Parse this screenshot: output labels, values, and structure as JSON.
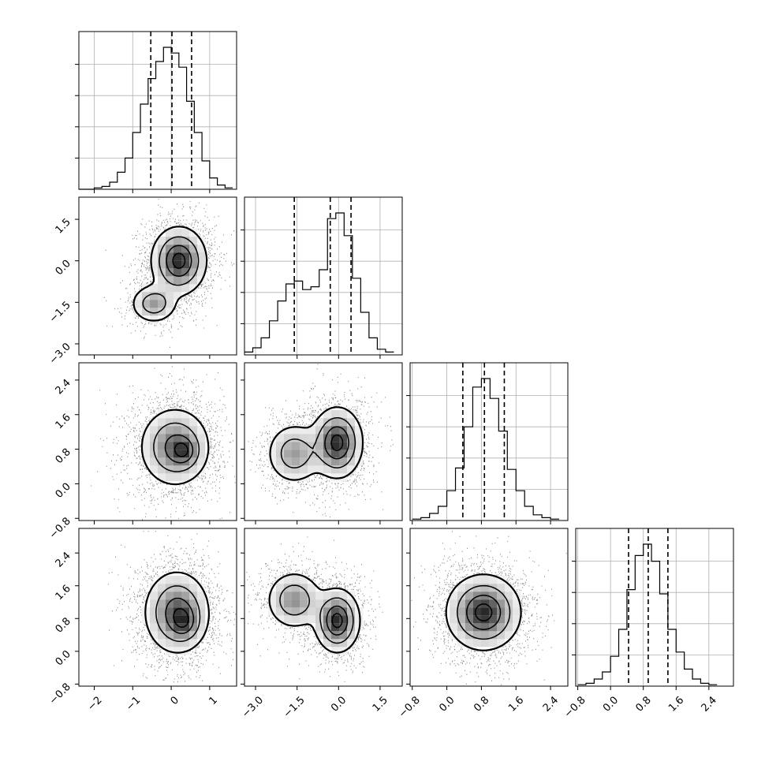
{
  "chart_data": {
    "type": "corner",
    "title": "",
    "params": [
      {
        "key": "p0",
        "range": [
          -2.4,
          1.7
        ],
        "ticks": [
          -2,
          -1,
          0,
          1
        ],
        "tick_labels": [
          "−2",
          "−1",
          "0",
          "1"
        ]
      },
      {
        "key": "p1",
        "range": [
          -3.4,
          2.3
        ],
        "ticks": [
          -3.0,
          -1.5,
          0.0,
          1.5
        ],
        "tick_labels": [
          "−3.0",
          "−1.5",
          "0.0",
          "1.5"
        ]
      },
      {
        "key": "p2",
        "range": [
          -0.85,
          2.8
        ],
        "ticks": [
          -0.8,
          0.0,
          0.8,
          1.6,
          2.4
        ],
        "tick_labels": [
          "−0.8",
          "0.0",
          "0.8",
          "1.6",
          "2.4"
        ]
      },
      {
        "key": "p3",
        "range": [
          -0.85,
          3.0
        ],
        "ticks": [
          -0.8,
          0.0,
          0.8,
          1.6,
          2.4
        ],
        "tick_labels": [
          "−0.8",
          "0.0",
          "0.8",
          "1.6",
          "2.4"
        ]
      }
    ],
    "histograms": [
      {
        "param": "p0",
        "quantiles": [
          -0.53,
          0.02,
          0.53
        ],
        "bins": [
          -2.4,
          -2.2,
          -2.0,
          -1.8,
          -1.6,
          -1.4,
          -1.2,
          -1.0,
          -0.8,
          -0.6,
          -0.4,
          -0.2,
          0.0,
          0.2,
          0.4,
          0.6,
          0.8,
          1.0,
          1.2,
          1.4,
          1.6
        ],
        "counts": [
          0,
          0,
          0.01,
          0.02,
          0.05,
          0.12,
          0.22,
          0.4,
          0.6,
          0.78,
          0.9,
          1.0,
          0.96,
          0.86,
          0.62,
          0.4,
          0.2,
          0.08,
          0.03,
          0.01
        ]
      },
      {
        "param": "p1",
        "quantiles": [
          -1.6,
          -0.3,
          0.45
        ],
        "bins": [
          -3.4,
          -3.1,
          -2.8,
          -2.5,
          -2.2,
          -1.9,
          -1.6,
          -1.3,
          -1.0,
          -0.7,
          -0.4,
          -0.1,
          0.2,
          0.5,
          0.8,
          1.1,
          1.4,
          1.7,
          2.0
        ],
        "counts": [
          0.02,
          0.05,
          0.12,
          0.24,
          0.38,
          0.5,
          0.52,
          0.46,
          0.48,
          0.6,
          0.96,
          1.0,
          0.84,
          0.54,
          0.3,
          0.12,
          0.04,
          0.02
        ]
      },
      {
        "param": "p2",
        "quantiles": [
          0.37,
          0.87,
          1.33
        ],
        "bins": [
          -0.8,
          -0.6,
          -0.4,
          -0.2,
          0.0,
          0.2,
          0.4,
          0.6,
          0.8,
          1.0,
          1.2,
          1.4,
          1.6,
          1.8,
          2.0,
          2.2,
          2.4,
          2.6
        ],
        "counts": [
          0.01,
          0.02,
          0.05,
          0.1,
          0.21,
          0.37,
          0.66,
          0.94,
          1.0,
          0.86,
          0.63,
          0.36,
          0.21,
          0.1,
          0.04,
          0.02,
          0.01
        ]
      },
      {
        "param": "p3",
        "quantiles": [
          0.44,
          0.92,
          1.4
        ],
        "bins": [
          -0.8,
          -0.6,
          -0.4,
          -0.2,
          0.0,
          0.2,
          0.4,
          0.6,
          0.8,
          1.0,
          1.2,
          1.4,
          1.6,
          1.8,
          2.0,
          2.2,
          2.4,
          2.6
        ],
        "counts": [
          0.01,
          0.02,
          0.05,
          0.1,
          0.21,
          0.4,
          0.68,
          0.92,
          1.0,
          0.88,
          0.65,
          0.4,
          0.24,
          0.12,
          0.05,
          0.02,
          0.01
        ]
      }
    ],
    "pair_density": [
      {
        "x": "p0",
        "y": "p1",
        "modes": [
          {
            "mx": 0.2,
            "my": 0.0,
            "sx": 0.35,
            "sy": 0.6,
            "w": 1.0
          },
          {
            "mx": -0.45,
            "my": -1.55,
            "sx": 0.3,
            "sy": 0.35,
            "w": 0.55
          }
        ]
      },
      {
        "x": "p0",
        "y": "p2",
        "modes": [
          {
            "mx": 0.1,
            "my": 0.85,
            "sx": 0.45,
            "sy": 0.45,
            "w": 1.0
          },
          {
            "mx": 0.35,
            "my": 0.75,
            "sx": 0.2,
            "sy": 0.2,
            "w": 0.5
          }
        ]
      },
      {
        "x": "p1",
        "y": "p2",
        "modes": [
          {
            "mx": -0.05,
            "my": 0.95,
            "sx": 0.45,
            "sy": 0.4,
            "w": 1.0
          },
          {
            "mx": -1.6,
            "my": 0.7,
            "sx": 0.5,
            "sy": 0.35,
            "w": 0.55
          }
        ]
      },
      {
        "x": "p0",
        "y": "p3",
        "modes": [
          {
            "mx": 0.15,
            "my": 0.95,
            "sx": 0.42,
            "sy": 0.5,
            "w": 1.0
          },
          {
            "mx": 0.35,
            "my": 0.7,
            "sx": 0.22,
            "sy": 0.25,
            "w": 0.45
          }
        ]
      },
      {
        "x": "p1",
        "y": "p3",
        "modes": [
          {
            "mx": -0.05,
            "my": 0.75,
            "sx": 0.4,
            "sy": 0.38,
            "w": 1.0
          },
          {
            "mx": -1.6,
            "my": 1.25,
            "sx": 0.5,
            "sy": 0.35,
            "w": 0.6
          }
        ]
      },
      {
        "x": "p2",
        "y": "p3",
        "modes": [
          {
            "mx": 0.85,
            "my": 0.95,
            "sx": 0.42,
            "sy": 0.45,
            "w": 1.0
          }
        ]
      }
    ],
    "contour_levels": [
      0.9,
      0.65,
      0.35,
      0.12
    ],
    "grid": true,
    "colors": {
      "line": "#000000",
      "grid": "#b0b0b0",
      "points": "#000000",
      "density": "#000000"
    }
  }
}
